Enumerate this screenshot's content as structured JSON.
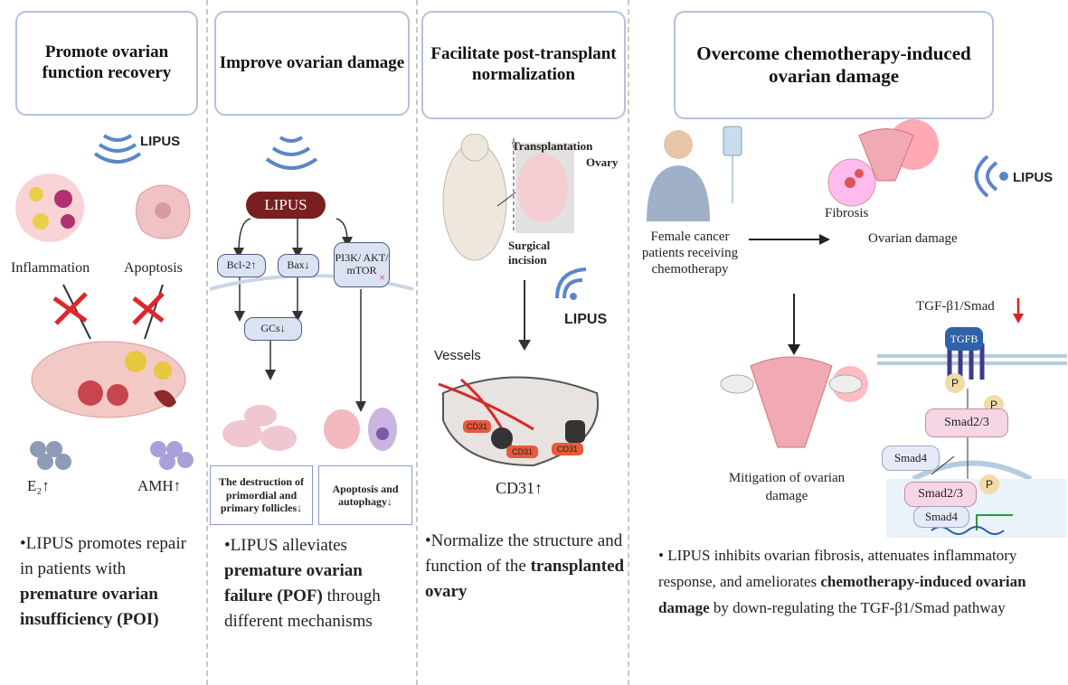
{
  "panels": [
    {
      "title": "Promote ovarian function recovery",
      "lipus": "LIPUS",
      "inflammation": "Inflammation",
      "apoptosis": "Apoptosis",
      "e2": "E₂↑",
      "amh": "AMH↑",
      "bullet_pre": "•LIPUS promotes repair in patients with ",
      "bullet_bold": "premature ovarian insufficiency (POI)",
      "bullet_post": ""
    },
    {
      "title": "Improve ovarian damage",
      "lipus": "LIPUS",
      "bcl2": "Bcl-2↑",
      "bax": "Bax↓",
      "pi3k": "PI3K/ AKT/ mTOR",
      "x_mark": "×",
      "gcs": "GCs↓",
      "box1": "The destruction of primordial and primary follicles↓",
      "box2": "Apoptosis and autophagy↓",
      "bullet_pre": "•LIPUS alleviates ",
      "bullet_bold": "premature ovarian failure (POF)",
      "bullet_post": " through different mechanisms"
    },
    {
      "title": "Facilitate post-transplant normalization",
      "transplantation": "Transplantation",
      "ovary": "Ovary",
      "incision": "Surgical incision",
      "lipus": "LIPUS",
      "vessels": "Vessels",
      "cd31_tag": "CD31",
      "cd31": "CD31↑",
      "bullet_pre": "•Normalize the structure and function of the ",
      "bullet_bold": "transplanted ovary",
      "bullet_post": ""
    },
    {
      "title": "Overcome chemotherapy-induced ovarian damage",
      "patients": "Female cancer patients receiving chemotherapy",
      "fibrosis": "Fibrosis",
      "ovarian_damage": "Ovarian damage",
      "lipus": "LIPUS",
      "mitigation": "Mitigation of ovarian damage",
      "pathway": "TGF-β1/Smad",
      "tgfb": "TGFB",
      "p": "P",
      "smad23": "Smad2/3",
      "smad4": "Smad4",
      "bullet_pre": "•  LIPUS inhibits ovarian fibrosis, attenuates inflammatory response, and ameliorates ",
      "bullet_bold": "chemotherapy-induced ovarian damage",
      "bullet_post": " by down-regulating the TGF-β1/Smad pathway"
    }
  ],
  "colors": {
    "box_border": "#b3c2dd",
    "lipus_pill": "#7a1f1f",
    "wave": "#5b86c6",
    "cross": "#e0262b",
    "down_arrow": "#d9231f",
    "tgfb": "#2f62a8"
  }
}
